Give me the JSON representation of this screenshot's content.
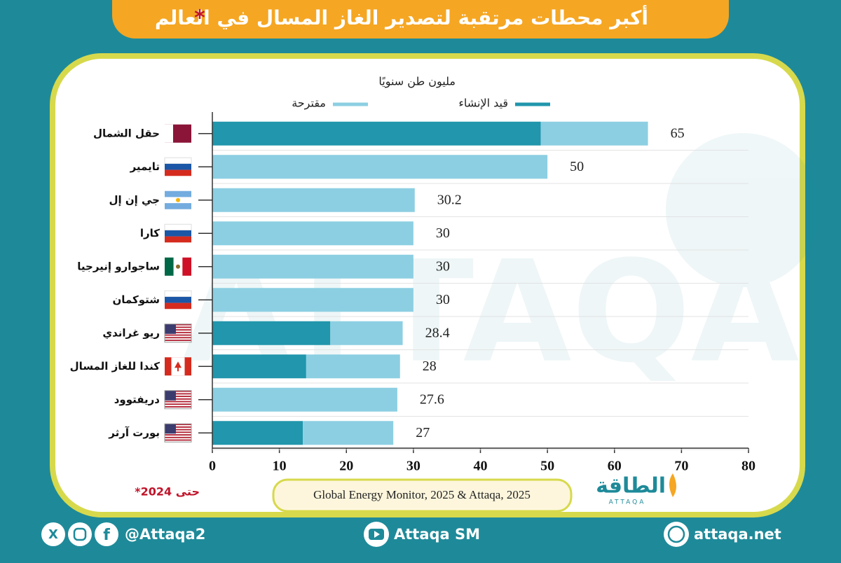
{
  "chart_data": {
    "type": "stacked-bar-horizontal",
    "title": "أكبر محطات مرتقبة لتصدير الغاز المسال  في العالم",
    "title_mark": "*",
    "unit_label": "مليون طن سنويًا",
    "categories": [
      "حقل الشمال",
      "تايمير",
      "جي إن إل",
      "كارا",
      "ساجوارو إنيرجيا",
      "شتوكمان",
      "ريو غراندي",
      "كندا للغاز  المسال",
      "دريفتوود",
      "بورت آرثر"
    ],
    "series": [
      {
        "name": "قيد الإنشاء",
        "color": "#2196ac",
        "values": [
          49,
          0,
          0,
          0,
          0,
          0,
          17.6,
          14,
          0,
          13.5
        ]
      },
      {
        "name": "مقترحة",
        "color": "#8ccfe2",
        "values": [
          16,
          50,
          30.2,
          30,
          30,
          30,
          10.8,
          14,
          27.6,
          13.5
        ]
      }
    ],
    "totals": [
      65,
      50,
      30.2,
      30,
      30,
      30,
      28.4,
      28,
      27.6,
      27
    ],
    "xlim": [
      0,
      80
    ],
    "xticks": [
      0,
      10,
      20,
      30,
      40,
      50,
      60,
      70,
      80
    ],
    "note": "*حتى 2024",
    "source": "Global Energy Monitor, 2025 & Attaqa, 2025"
  },
  "branding": {
    "logo": "الطاقة",
    "logo_sub": "ATTAQA",
    "social": "@Attaqa2",
    "youtube": "Attaqa SM",
    "website": "attaqa.net"
  }
}
